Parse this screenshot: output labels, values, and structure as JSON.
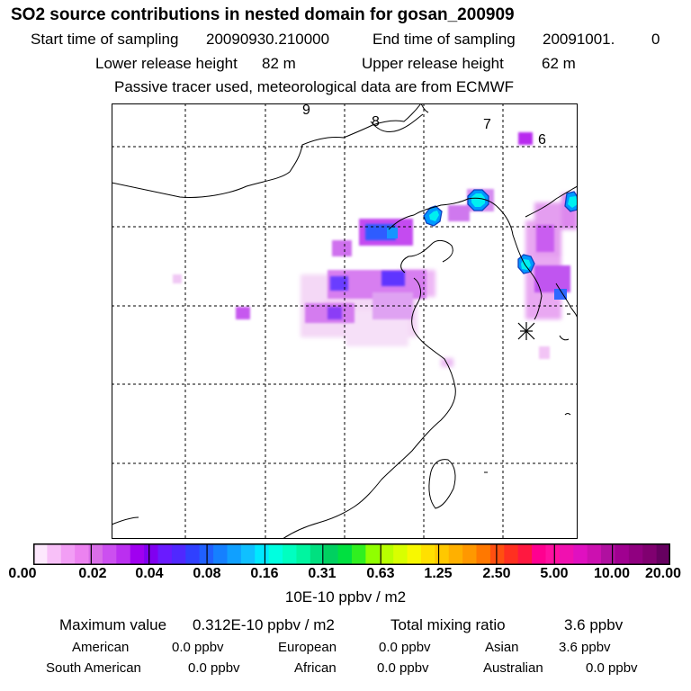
{
  "header": {
    "title": "SO2 source contributions in nested domain for gosan_200909",
    "start_label": "Start time of sampling",
    "start_value": "20090930.210000",
    "end_label": "End time of sampling",
    "end_value": "20091001.",
    "end_suffix": "0",
    "lower_label": "Lower release height",
    "lower_value": "82 m",
    "upper_label": "Upper release height",
    "upper_value": "62 m",
    "note": "Passive tracer used, meteorological data are from ECMWF"
  },
  "map": {
    "grid_labels": [
      "9",
      "8",
      "7",
      "6"
    ],
    "receptor_marker": "asterisk-icon"
  },
  "colorbar": {
    "ticks": [
      "0.00",
      "0.02",
      "0.04",
      "0.08",
      "0.16",
      "0.31",
      "0.63",
      "1.25",
      "2.50",
      "5.00",
      "10.00",
      "20.00"
    ],
    "colors": [
      "#fde8fd",
      "#f8c0f8",
      "#f29ef5",
      "#ec82f0",
      "#d96ee8",
      "#cc4ff0",
      "#bb2ff0",
      "#a000f0",
      "#8000f0",
      "#6a1bff",
      "#5028ff",
      "#3040ff",
      "#2060ff",
      "#1580ff",
      "#10a0ff",
      "#10c0ff",
      "#00e8ff",
      "#00ffe0",
      "#00ffc0",
      "#00f5a0",
      "#00e080",
      "#00d060",
      "#00e040",
      "#30f020",
      "#90ff00",
      "#b8ff00",
      "#d8ff00",
      "#f8f800",
      "#ffe000",
      "#ffc800",
      "#ffb000",
      "#ff9800",
      "#ff7800",
      "#ff5010",
      "#ff3020",
      "#ff1840",
      "#ff0090",
      "#ff10a0",
      "#f010b0",
      "#e010c0",
      "#cc10b0",
      "#b010a0",
      "#a00090",
      "#900080",
      "#800070",
      "#660060"
    ],
    "unit_label": "10E-10 ppbv / m2"
  },
  "summary": {
    "max_label": "Maximum value",
    "max_value": "0.312E-10 ppbv / m2",
    "total_label": "Total mixing ratio",
    "total_value": "3.6 ppbv",
    "regions": [
      {
        "name": "American",
        "value": "0.0 ppbv"
      },
      {
        "name": "European",
        "value": "0.0 ppbv"
      },
      {
        "name": "Asian",
        "value": "3.6 ppbv"
      },
      {
        "name": "South American",
        "value": "0.0 ppbv"
      },
      {
        "name": "African",
        "value": "0.0 ppbv"
      },
      {
        "name": "Australian",
        "value": "0.0 ppbv"
      }
    ]
  }
}
